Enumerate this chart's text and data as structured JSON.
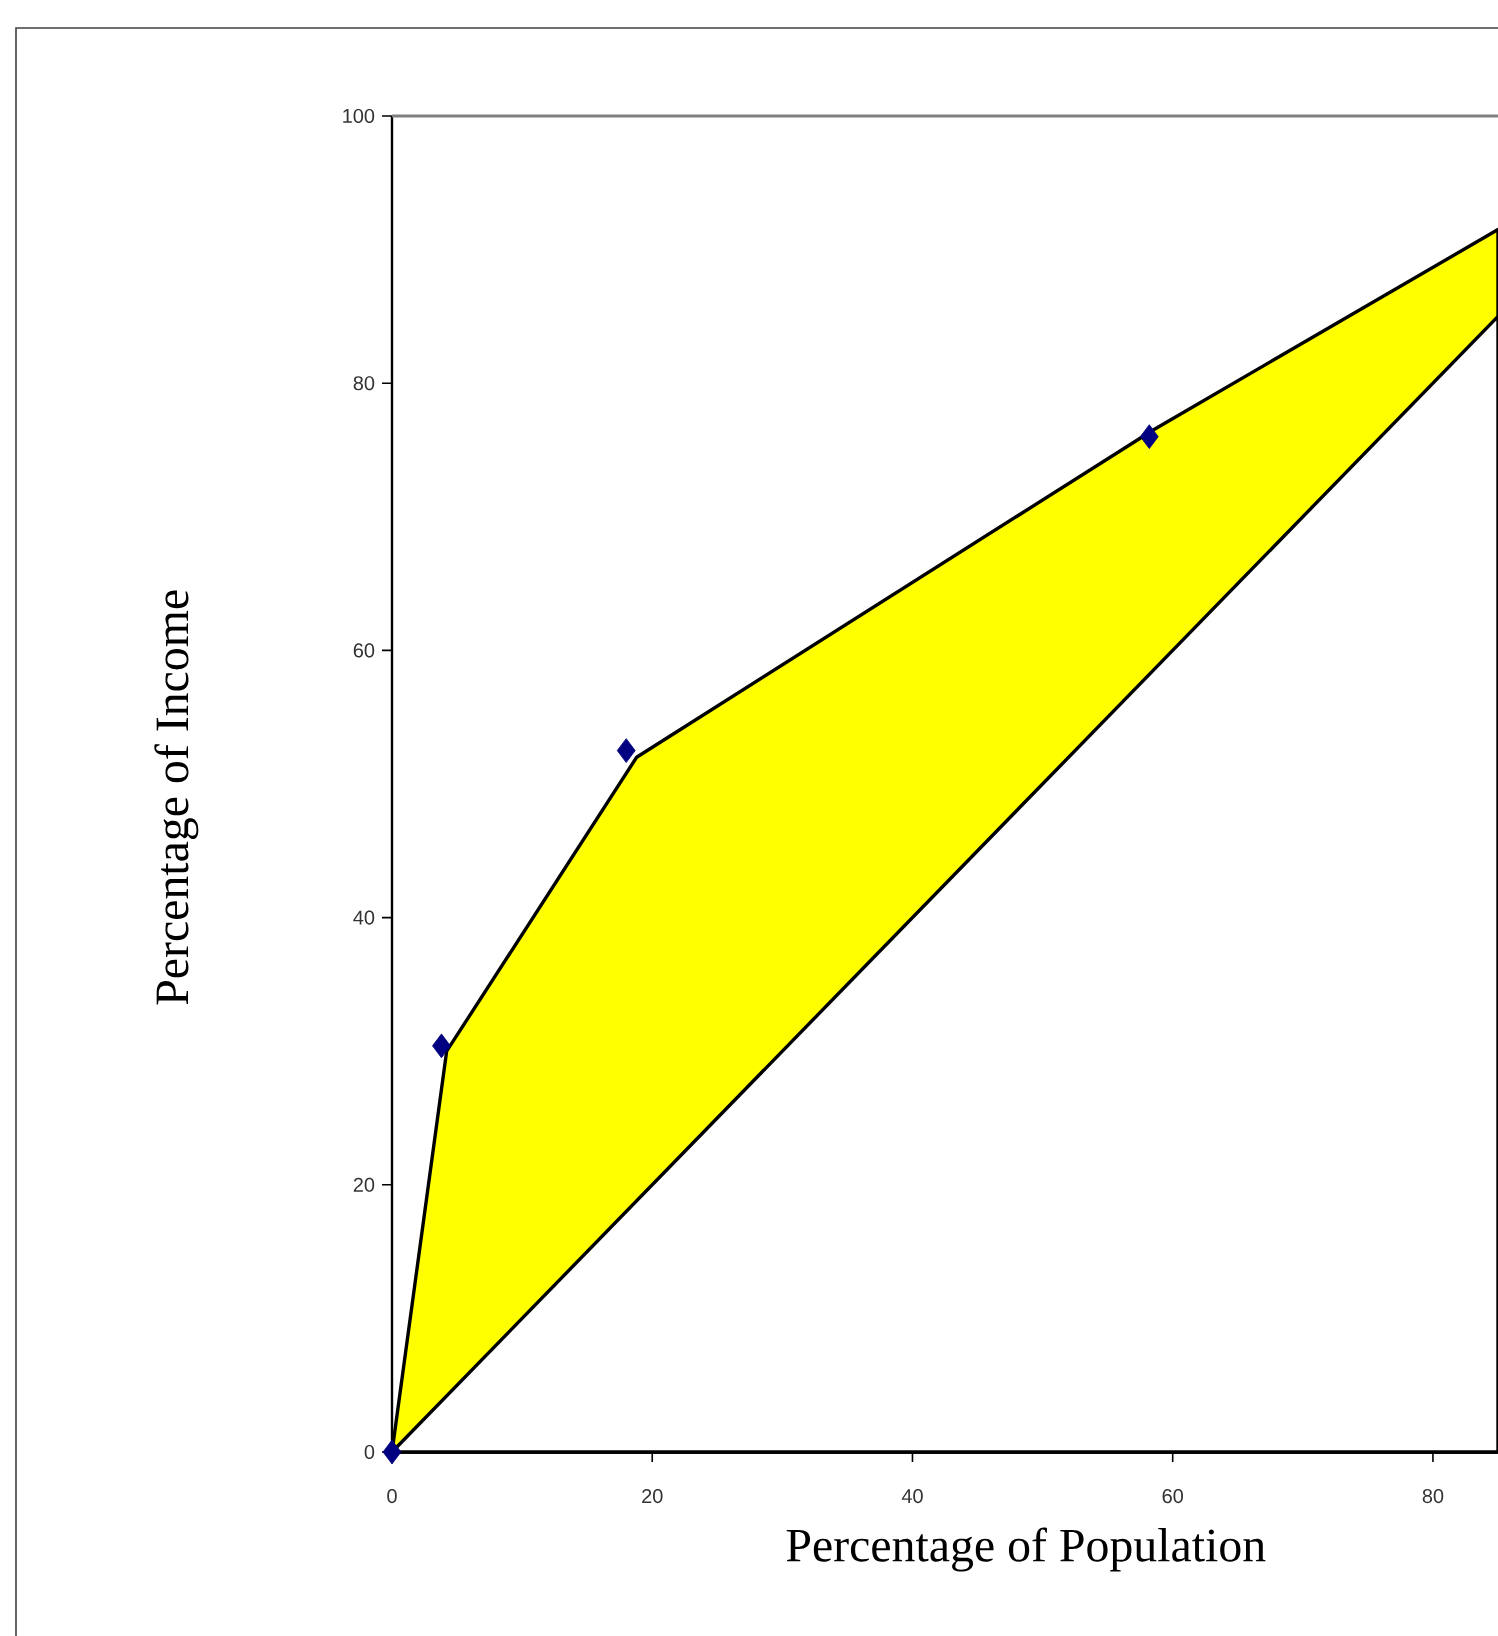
{
  "chart_data": {
    "type": "area",
    "xlabel": "Percentage of Population",
    "ylabel": "Percentage of Income",
    "xlim": [
      0,
      85
    ],
    "ylim": [
      0,
      100
    ],
    "xticks": [
      0,
      20,
      40,
      60,
      80
    ],
    "yticks": [
      0,
      20,
      40,
      60,
      80,
      100
    ],
    "series": [
      {
        "color": "#ffff00",
        "x": [
          0,
          4.2,
          18.8,
          58.5,
          85
        ],
        "values": [
          0,
          30,
          52,
          76.5,
          91.5
        ]
      },
      {
        "color": "#ffffff",
        "x": [
          0,
          85
        ],
        "values": [
          0,
          85
        ]
      },
      {
        "type": "scatter",
        "color": "#000080",
        "x": [
          0,
          3.8,
          18,
          58.2
        ],
        "values": [
          0,
          30.4,
          52.5,
          76
        ],
        "marker": "diamond"
      }
    ]
  }
}
